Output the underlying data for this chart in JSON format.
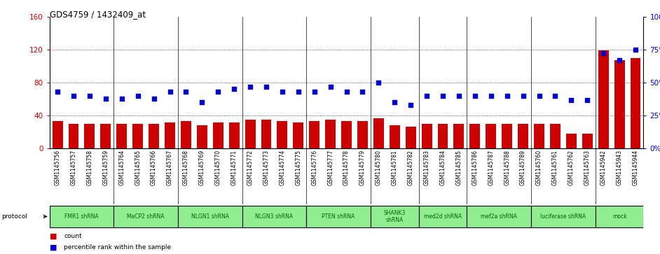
{
  "title": "GDS4759 / 1432409_at",
  "samples": [
    "GSM1145756",
    "GSM1145757",
    "GSM1145758",
    "GSM1145759",
    "GSM1145764",
    "GSM1145765",
    "GSM1145766",
    "GSM1145767",
    "GSM1145768",
    "GSM1145769",
    "GSM1145770",
    "GSM1145771",
    "GSM1145772",
    "GSM1145773",
    "GSM1145774",
    "GSM1145775",
    "GSM1145776",
    "GSM1145777",
    "GSM1145778",
    "GSM1145779",
    "GSM1145780",
    "GSM1145781",
    "GSM1145782",
    "GSM1145783",
    "GSM1145784",
    "GSM1145785",
    "GSM1145786",
    "GSM1145787",
    "GSM1145788",
    "GSM1145789",
    "GSM1145760",
    "GSM1145761",
    "GSM1145762",
    "GSM1145763",
    "GSM1145942",
    "GSM1145943",
    "GSM1145944"
  ],
  "counts": [
    33,
    30,
    30,
    30,
    30,
    30,
    30,
    32,
    33,
    28,
    32,
    32,
    35,
    35,
    33,
    32,
    33,
    35,
    33,
    33,
    37,
    28,
    27,
    30,
    30,
    30,
    30,
    30,
    30,
    30,
    30,
    30,
    18,
    18,
    119,
    107,
    110
  ],
  "percentiles": [
    43,
    40,
    40,
    38,
    38,
    40,
    38,
    43,
    43,
    35,
    43,
    45,
    47,
    47,
    43,
    43,
    43,
    47,
    43,
    43,
    50,
    35,
    33,
    40,
    40,
    40,
    40,
    40,
    40,
    40,
    40,
    40,
    37,
    37,
    72,
    67,
    75
  ],
  "protocols": [
    {
      "label": "FMR1 shRNA",
      "start": 0,
      "end": 4
    },
    {
      "label": "MeCP2 shRNA",
      "start": 4,
      "end": 8
    },
    {
      "label": "NLGN1 shRNA",
      "start": 8,
      "end": 12
    },
    {
      "label": "NLGN3 shRNA",
      "start": 12,
      "end": 16
    },
    {
      "label": "PTEN shRNA",
      "start": 16,
      "end": 20
    },
    {
      "label": "SHANK3\nshRNA",
      "start": 20,
      "end": 23
    },
    {
      "label": "med2d shRNA",
      "start": 23,
      "end": 26
    },
    {
      "label": "mef2a shRNA",
      "start": 26,
      "end": 30
    },
    {
      "label": "luciferase shRNA",
      "start": 30,
      "end": 34
    },
    {
      "label": "mock",
      "start": 34,
      "end": 37
    }
  ],
  "ylim_left": [
    0,
    160
  ],
  "ylim_right": [
    0,
    100
  ],
  "yticks_left": [
    0,
    40,
    80,
    120,
    160
  ],
  "yticks_right": [
    0,
    25,
    50,
    75,
    100
  ],
  "ytick_labels_left": [
    "0",
    "40",
    "80",
    "120",
    "160"
  ],
  "ytick_labels_right": [
    "0%",
    "25%",
    "50%",
    "75%",
    "100%"
  ],
  "bar_color": "#CC0000",
  "dot_color": "#0000CC",
  "bg_color": "#FFFFFF",
  "plot_bg_color": "#FFFFFF",
  "label_bg_color": "#C8C8C8",
  "proto_color": "#90EE90",
  "proto_text_color": "#006400"
}
